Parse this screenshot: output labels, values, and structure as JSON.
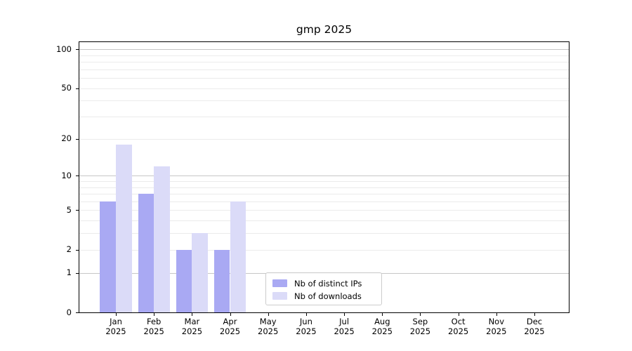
{
  "chart_data": {
    "type": "bar",
    "title": "gmp 2025",
    "categories": [
      "Jan",
      "Feb",
      "Mar",
      "Apr",
      "May",
      "Jun",
      "Jul",
      "Aug",
      "Sep",
      "Oct",
      "Nov",
      "Dec"
    ],
    "x_tick_year": "2025",
    "series": [
      {
        "name": "Nb of distinct IPs",
        "color": "#a9a9f3",
        "values": [
          6,
          7,
          2,
          2,
          0,
          0,
          0,
          0,
          0,
          0,
          0,
          0
        ]
      },
      {
        "name": "Nb of downloads",
        "color": "#dbdbf8",
        "values": [
          18,
          12,
          3,
          6,
          0,
          0,
          0,
          0,
          0,
          0,
          0,
          0
        ]
      }
    ],
    "yscale": "log10(1+v)",
    "ylim": [
      0,
      113.2
    ],
    "y_ticks": [
      0,
      1,
      2,
      5,
      10,
      20,
      50,
      100
    ],
    "grid": {
      "major": [
        1,
        10,
        100
      ],
      "minor": [
        2,
        3,
        4,
        5,
        6,
        7,
        8,
        9,
        20,
        30,
        40,
        50,
        60,
        70,
        80,
        90
      ]
    },
    "legend_position": "lower center",
    "colors": {
      "grid_major": "#c6c6c6",
      "grid_minor": "#ebebeb",
      "spine": "#000000",
      "text": "#000000"
    }
  }
}
